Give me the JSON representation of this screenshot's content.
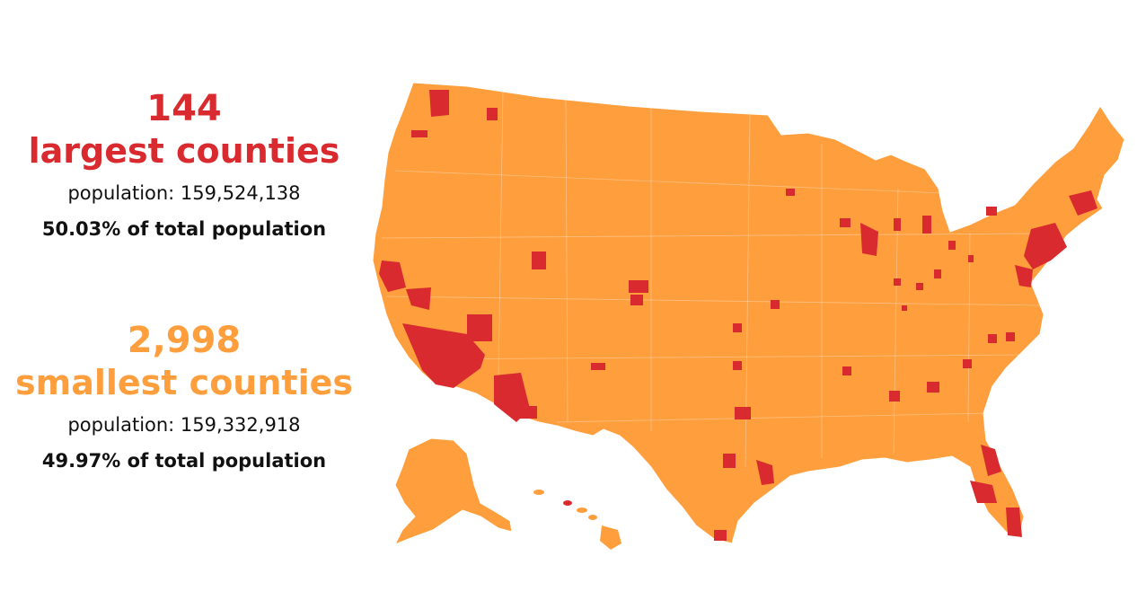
{
  "colors": {
    "large": "#d92b2f",
    "small": "#ff9e3d",
    "border": "#ffffff",
    "text": "#111111"
  },
  "largest": {
    "count": "144",
    "label": "largest counties",
    "population": "population: 159,524,138",
    "share": "50.03% of total population"
  },
  "smallest": {
    "count": "2,998",
    "label": "smallest counties",
    "population": "population: 159,332,918",
    "share": "49.97% of total population"
  },
  "map": {
    "region_fill": "small",
    "highlighted_fill": "large"
  }
}
